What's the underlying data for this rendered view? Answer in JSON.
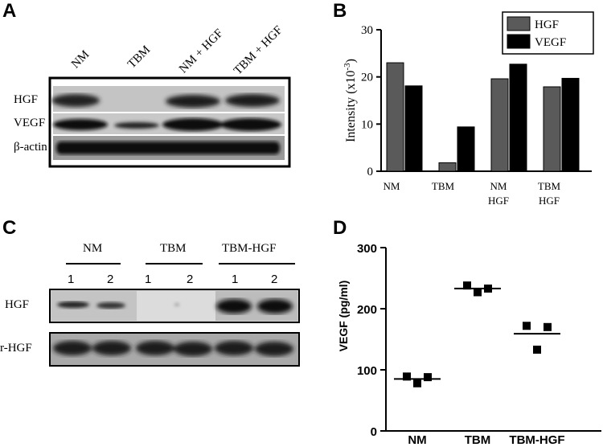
{
  "panels": {
    "a": {
      "letter": "A",
      "lanes": [
        "NM",
        "TBM",
        "NM + HGF",
        "TBM + HGF"
      ],
      "rows": [
        "HGF",
        "VEGF",
        "β-actin"
      ]
    },
    "b": {
      "letter": "B",
      "y_tick_labels": [
        "0",
        "10",
        "20",
        "30"
      ],
      "x_tick_labels": [
        {
          "line1": "NM",
          "line2": ""
        },
        {
          "line1": "TBM",
          "line2": ""
        },
        {
          "line1": "NM",
          "line2": "HGF"
        },
        {
          "line1": "TBM",
          "line2": "HGF"
        }
      ]
    },
    "c": {
      "letter": "C",
      "groups": [
        "NM",
        "TBM",
        "TBM-HGF"
      ],
      "lane_numbers": [
        "1",
        "2",
        "1",
        "2",
        "1",
        "2"
      ],
      "rows": [
        "HGF",
        "r-HGF"
      ]
    },
    "d": {
      "letter": "D",
      "y_tick_labels": [
        "0",
        "100",
        "200",
        "300"
      ]
    }
  },
  "chart_data": [
    {
      "type": "bar",
      "title": "",
      "categories": [
        "NM",
        "TBM",
        "NM HGF",
        "TBM HGF"
      ],
      "series": [
        {
          "name": "HGF",
          "values": [
            23,
            1.8,
            19.6,
            17.9
          ],
          "color": "#5a5a5a"
        },
        {
          "name": "VEGF",
          "values": [
            18.1,
            9.4,
            22.7,
            19.7
          ],
          "color": "#000000"
        }
      ],
      "xlabel": "",
      "ylabel": "Intensity (x10-3)",
      "ylabel_main": "Intensity (x10",
      "ylabel_exp": "-3",
      "ylabel_close": ")",
      "ylim": [
        0,
        30
      ],
      "legend": "top-right",
      "grid": false
    },
    {
      "type": "scatter",
      "title": "",
      "categories": [
        "NM",
        "TBM",
        "TBM-HGF"
      ],
      "points": [
        {
          "group": "NM",
          "values": [
            89,
            78,
            88
          ]
        },
        {
          "group": "TBM",
          "values": [
            238,
            227,
            233
          ]
        },
        {
          "group": "TBM-HGF",
          "values": [
            172,
            133,
            170
          ]
        }
      ],
      "means": [
        85,
        233,
        159
      ],
      "xlabel": "",
      "ylabel": "VEGF (pg/ml)",
      "ylim": [
        0,
        300
      ],
      "grid": false
    }
  ]
}
